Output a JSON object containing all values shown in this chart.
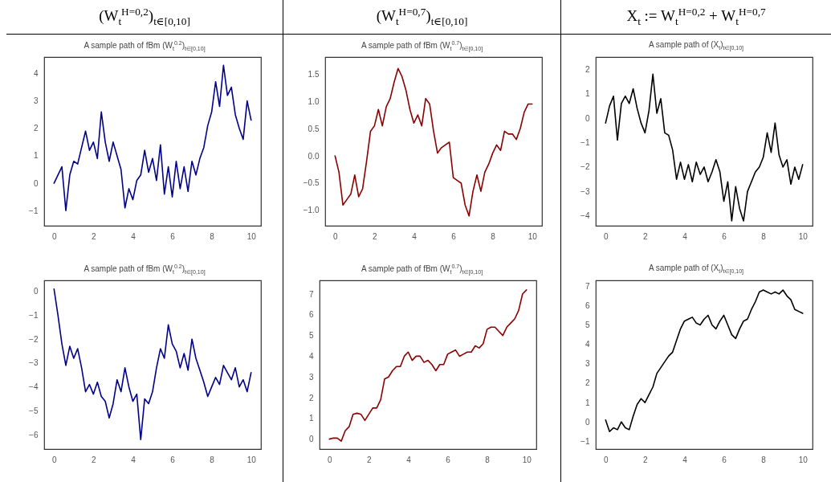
{
  "chart_data": [
    {
      "type": "line",
      "title": "(W$_{t}$$^{H=0,2}$)$_{t∈[0,10]}$",
      "subtitle": "A sample path of fBm (W$_{t}$$^{0.2}$)$_{t∈[0,10]}$",
      "x": [
        0,
        0.2,
        0.4,
        0.6,
        0.8,
        1,
        1.2,
        1.4,
        1.6,
        1.8,
        2,
        2.2,
        2.4,
        2.6,
        2.8,
        3,
        3.2,
        3.4,
        3.6,
        3.8,
        4,
        4.2,
        4.4,
        4.6,
        4.8,
        5,
        5.2,
        5.4,
        5.6,
        5.8,
        6,
        6.2,
        6.4,
        6.6,
        6.8,
        7,
        7.2,
        7.4,
        7.6,
        7.8,
        8,
        8.2,
        8.4,
        8.6,
        8.8,
        9,
        9.2,
        9.4,
        9.6,
        9.8,
        10
      ],
      "xlim": [
        -0.5,
        10.5
      ],
      "xticks": [
        0,
        2,
        4,
        6,
        8,
        10
      ],
      "ylim": [
        -1.55,
        4.6
      ],
      "yticks": [
        {
          "value": -1,
          "label": "−1"
        },
        0,
        1,
        2,
        3,
        4
      ],
      "series": [
        {
          "color": "#00008b",
          "values": [
            0,
            0.3,
            0.6,
            -1.0,
            0.3,
            0.8,
            0.7,
            1.3,
            1.9,
            1.2,
            1.5,
            0.9,
            2.6,
            1.5,
            0.8,
            1.5,
            1.0,
            0.5,
            -0.9,
            -0.2,
            -0.6,
            0.1,
            0.3,
            1.2,
            0.4,
            0.9,
            0.1,
            1.4,
            -0.4,
            0.6,
            -0.5,
            0.8,
            -0.2,
            0.6,
            -0.3,
            0.8,
            0.3,
            0.9,
            1.3,
            2.1,
            2.6,
            3.7,
            2.8,
            4.3,
            3.2,
            3.5,
            2.5,
            2.0,
            1.6,
            3.0,
            2.3
          ]
        }
      ]
    },
    {
      "type": "line",
      "title": "(W$_{t}$$^{H=0,7}$)$_{t∈[0,10]}$",
      "subtitle": "A sample path of fBm (W$_{t}$$^{0.7}$)$_{t∈[0,10]}$",
      "x": [
        0,
        0.2,
        0.4,
        0.6,
        0.8,
        1,
        1.2,
        1.4,
        1.6,
        1.8,
        2,
        2.2,
        2.4,
        2.6,
        2.8,
        3,
        3.2,
        3.4,
        3.6,
        3.8,
        4,
        4.2,
        4.4,
        4.6,
        4.8,
        5,
        5.2,
        5.4,
        5.6,
        5.8,
        6,
        6.2,
        6.4,
        6.6,
        6.8,
        7,
        7.2,
        7.4,
        7.6,
        7.8,
        8,
        8.2,
        8.4,
        8.6,
        8.8,
        9,
        9.2,
        9.4,
        9.6,
        9.8,
        10
      ],
      "xlim": [
        -0.5,
        10.5
      ],
      "xticks": [
        0,
        2,
        4,
        6,
        8,
        10
      ],
      "ylim": [
        -1.28,
        1.81
      ],
      "yticks": [
        {
          "value": -1,
          "label": "−1.0"
        },
        {
          "value": -0.5,
          "label": "−0.5"
        },
        {
          "value": 0,
          "label": "0.0"
        },
        0.5,
        {
          "value": 1,
          "label": "1.0"
        },
        1.5
      ],
      "series": [
        {
          "color": "#8b0000",
          "values": [
            0,
            -0.3,
            -0.9,
            -0.8,
            -0.7,
            -0.35,
            -0.75,
            -0.6,
            -0.1,
            0.45,
            0.55,
            0.85,
            0.55,
            0.9,
            1.05,
            1.35,
            1.6,
            1.45,
            1.2,
            0.85,
            0.6,
            0.75,
            0.55,
            1.05,
            0.95,
            0.45,
            0.05,
            0.15,
            0.2,
            0.25,
            -0.4,
            -0.45,
            -0.5,
            -0.9,
            -1.1,
            -0.65,
            -0.35,
            -0.65,
            -0.3,
            -0.15,
            0.05,
            0.2,
            0.1,
            0.45,
            0.4,
            0.4,
            0.3,
            0.5,
            0.8,
            0.95,
            0.95
          ]
        }
      ]
    },
    {
      "type": "line",
      "title": "X$_{t}$ := W$_{t}$$^{H=0,2}$ + W$_{t}$$^{H=0,7}$",
      "subtitle": "A sample path of (X$_{t}$)$_{t∈[0,10]}$",
      "x": [
        0,
        0.2,
        0.4,
        0.6,
        0.8,
        1,
        1.2,
        1.4,
        1.6,
        1.8,
        2,
        2.2,
        2.4,
        2.6,
        2.8,
        3,
        3.2,
        3.4,
        3.6,
        3.8,
        4,
        4.2,
        4.4,
        4.6,
        4.8,
        5,
        5.2,
        5.4,
        5.6,
        5.8,
        6,
        6.2,
        6.4,
        6.6,
        6.8,
        7,
        7.2,
        7.4,
        7.6,
        7.8,
        8,
        8.2,
        8.4,
        8.6,
        8.8,
        9,
        9.2,
        9.4,
        9.6,
        9.8,
        10
      ],
      "xlim": [
        -0.5,
        10.5
      ],
      "xticks": [
        0,
        2,
        4,
        6,
        8,
        10
      ],
      "ylim": [
        -4.4,
        2.5
      ],
      "yticks": [
        {
          "value": -4,
          "label": "−4"
        },
        {
          "value": -3,
          "label": "−3"
        },
        {
          "value": -2,
          "label": "−2"
        },
        {
          "value": -1,
          "label": "−1"
        },
        0,
        1,
        2
      ],
      "series": [
        {
          "color": "#000000",
          "values": [
            -0.2,
            0.5,
            0.9,
            -0.9,
            0.6,
            0.9,
            0.6,
            1.2,
            0.4,
            -0.2,
            -0.6,
            0.3,
            1.8,
            0.2,
            0.8,
            -0.6,
            -0.7,
            -1.3,
            -2.5,
            -1.8,
            -2.5,
            -1.9,
            -2.6,
            -1.8,
            -2.3,
            -2.0,
            -2.6,
            -2.2,
            -1.7,
            -2.2,
            -3.4,
            -2.6,
            -4.2,
            -2.8,
            -3.7,
            -4.2,
            -3.0,
            -2.6,
            -2.2,
            -2.0,
            -1.6,
            -0.6,
            -1.4,
            -0.2,
            -1.5,
            -2.0,
            -1.7,
            -2.7,
            -2.0,
            -2.5,
            -1.9
          ]
        }
      ]
    },
    {
      "type": "line",
      "title": "A sample path of fBm (W$_{t}$$^{0.2}$)$_{t∈[0,10]}$",
      "x": [
        0,
        0.2,
        0.4,
        0.6,
        0.8,
        1,
        1.2,
        1.4,
        1.6,
        1.8,
        2,
        2.2,
        2.4,
        2.6,
        2.8,
        3,
        3.2,
        3.4,
        3.6,
        3.8,
        4,
        4.2,
        4.4,
        4.6,
        4.8,
        5,
        5.2,
        5.4,
        5.6,
        5.8,
        6,
        6.2,
        6.4,
        6.6,
        6.8,
        7,
        7.2,
        7.4,
        7.6,
        7.8,
        8,
        8.2,
        8.4,
        8.6,
        8.8,
        9,
        9.2,
        9.4,
        9.6,
        9.8,
        10
      ],
      "xlim": [
        -0.5,
        10.5
      ],
      "xticks": [
        0,
        2,
        4,
        6,
        8,
        10
      ],
      "ylim": [
        -6.6,
        0.46
      ],
      "yticks": [
        {
          "value": -6,
          "label": "−6"
        },
        {
          "value": -5,
          "label": "−5"
        },
        {
          "value": -4,
          "label": "−4"
        },
        {
          "value": -3,
          "label": "−3"
        },
        {
          "value": -2,
          "label": "−2"
        },
        {
          "value": -1,
          "label": "−1"
        },
        0
      ],
      "series": [
        {
          "color": "#00008b",
          "values": [
            0.1,
            -1.0,
            -2.2,
            -3.1,
            -2.3,
            -2.8,
            -2.4,
            -3.2,
            -4.2,
            -3.9,
            -4.3,
            -3.8,
            -4.4,
            -4.6,
            -5.3,
            -4.7,
            -3.7,
            -4.2,
            -3.2,
            -4.0,
            -4.6,
            -4.3,
            -6.2,
            -4.5,
            -4.7,
            -4.2,
            -3.2,
            -2.4,
            -2.8,
            -1.4,
            -2.2,
            -2.5,
            -3.2,
            -2.6,
            -3.3,
            -2.0,
            -2.8,
            -3.3,
            -3.8,
            -4.4,
            -4.0,
            -3.6,
            -3.9,
            -3.1,
            -3.4,
            -3.7,
            -3.2,
            -4.0,
            -3.7,
            -4.2,
            -3.4
          ]
        }
      ]
    },
    {
      "type": "line",
      "title": "A sample path of fBm (W$_{t}$$^{0.7}$)$_{t∈[0,10]}$",
      "x": [
        0,
        0.2,
        0.4,
        0.6,
        0.8,
        1,
        1.2,
        1.4,
        1.6,
        1.8,
        2,
        2.2,
        2.4,
        2.6,
        2.8,
        3,
        3.2,
        3.4,
        3.6,
        3.8,
        4,
        4.2,
        4.4,
        4.6,
        4.8,
        5,
        5.2,
        5.4,
        5.6,
        5.8,
        6,
        6.2,
        6.4,
        6.6,
        6.8,
        7,
        7.2,
        7.4,
        7.6,
        7.8,
        8,
        8.2,
        8.4,
        8.6,
        8.8,
        9,
        9.2,
        9.4,
        9.6,
        9.8,
        10
      ],
      "xlim": [
        -0.5,
        10.5
      ],
      "xticks": [
        0,
        2,
        4,
        6,
        8,
        10
      ],
      "ylim": [
        -0.48,
        7.66
      ],
      "yticks": [
        0,
        1,
        2,
        3,
        4,
        5,
        6,
        7
      ],
      "series": [
        {
          "color": "#8b0000",
          "values": [
            0.0,
            0.05,
            0.05,
            -0.1,
            0.4,
            0.6,
            1.2,
            1.25,
            1.2,
            0.9,
            1.2,
            1.5,
            1.5,
            1.9,
            2.9,
            3.0,
            3.3,
            3.5,
            3.5,
            4.0,
            4.2,
            3.8,
            4.0,
            4.0,
            3.7,
            3.8,
            3.6,
            3.3,
            3.6,
            3.6,
            4.1,
            4.2,
            4.3,
            4.0,
            4.1,
            4.2,
            4.2,
            4.5,
            4.4,
            4.6,
            5.3,
            5.4,
            5.4,
            5.2,
            5.0,
            5.4,
            5.6,
            5.8,
            6.2,
            7.0,
            7.2
          ]
        }
      ]
    },
    {
      "type": "line",
      "title": "A sample path of (X$_{t}$)$_{t∈[0,10]}$",
      "x": [
        0,
        0.2,
        0.4,
        0.6,
        0.8,
        1,
        1.2,
        1.4,
        1.6,
        1.8,
        2,
        2.2,
        2.4,
        2.6,
        2.8,
        3,
        3.2,
        3.4,
        3.6,
        3.8,
        4,
        4.2,
        4.4,
        4.6,
        4.8,
        5,
        5.2,
        5.4,
        5.6,
        5.8,
        6,
        6.2,
        6.4,
        6.6,
        6.8,
        7,
        7.2,
        7.4,
        7.6,
        7.8,
        8,
        8.2,
        8.4,
        8.6,
        8.8,
        9,
        9.2,
        9.4,
        9.6,
        9.8,
        10
      ],
      "xlim": [
        -0.5,
        10.5
      ],
      "xticks": [
        0,
        2,
        4,
        6,
        8,
        10
      ],
      "ylim": [
        -1.4,
        7.3
      ],
      "yticks": [
        {
          "value": -1,
          "label": "−1"
        },
        0,
        1,
        2,
        3,
        4,
        5,
        6,
        7
      ],
      "series": [
        {
          "color": "#000000",
          "values": [
            0.1,
            -0.5,
            -0.3,
            -0.4,
            0.0,
            -0.3,
            -0.4,
            0.3,
            0.9,
            1.2,
            1.0,
            1.4,
            1.8,
            2.5,
            2.8,
            3.1,
            3.4,
            3.6,
            4.2,
            4.8,
            5.2,
            5.3,
            5.4,
            5.1,
            5.0,
            5.3,
            5.5,
            5.0,
            4.8,
            5.2,
            5.5,
            5.0,
            4.5,
            4.3,
            4.8,
            5.2,
            5.3,
            5.8,
            6.2,
            6.7,
            6.8,
            6.7,
            6.6,
            6.7,
            6.6,
            6.8,
            6.5,
            6.3,
            5.8,
            5.7,
            5.6
          ]
        }
      ]
    }
  ]
}
